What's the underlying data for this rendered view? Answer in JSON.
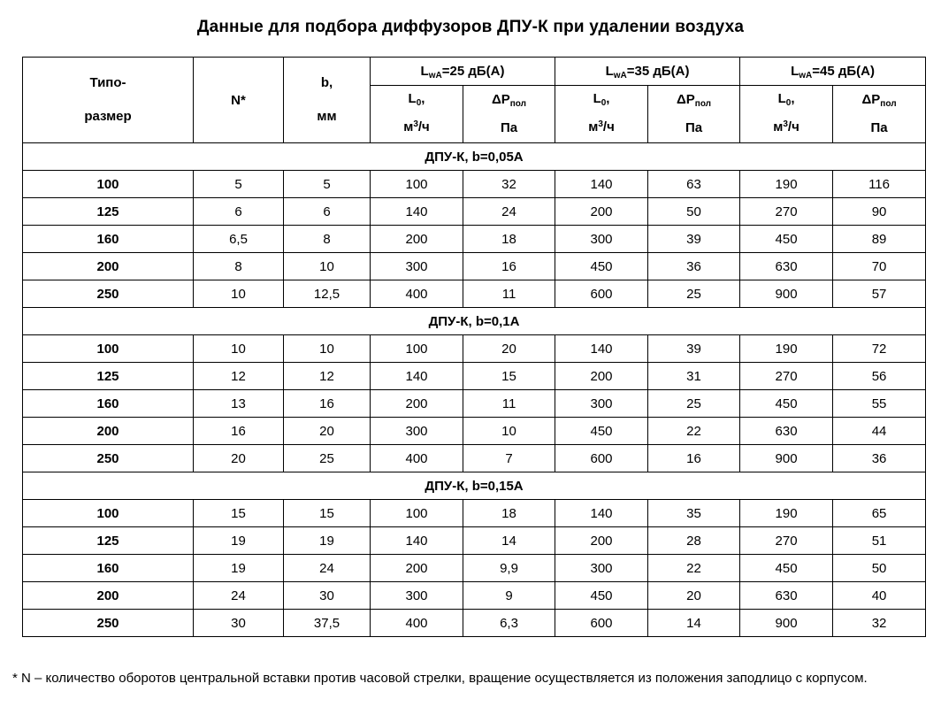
{
  "title": "Данные для подбора диффузоров ДПУ-К при удалении воздуха",
  "table": {
    "header": {
      "typo_line1": "Типо-",
      "typo_line2": "размер",
      "n_label": "N*",
      "b_line1": "b,",
      "b_line2": "мм",
      "groups": [
        {
          "main": "L",
          "sub": "wA",
          "rest": "=25 дБ(А)"
        },
        {
          "main": "L",
          "sub": "wA",
          "rest": "=35 дБ(А)"
        },
        {
          "main": "L",
          "sub": "wA",
          "rest": "=45 дБ(А)"
        }
      ],
      "flow": {
        "main": "L",
        "sub": "0",
        "rest": ",",
        "unit_main": "м",
        "unit_sup": "3",
        "unit_rest": "/ч"
      },
      "pressure": {
        "main": "ΔP",
        "sub": "пол",
        "unit": "Па"
      }
    },
    "sections": [
      {
        "label": "ДПУ-К, b=0,05А",
        "rows": [
          [
            "100",
            "5",
            "5",
            "100",
            "32",
            "140",
            "63",
            "190",
            "116"
          ],
          [
            "125",
            "6",
            "6",
            "140",
            "24",
            "200",
            "50",
            "270",
            "90"
          ],
          [
            "160",
            "6,5",
            "8",
            "200",
            "18",
            "300",
            "39",
            "450",
            "89"
          ],
          [
            "200",
            "8",
            "10",
            "300",
            "16",
            "450",
            "36",
            "630",
            "70"
          ],
          [
            "250",
            "10",
            "12,5",
            "400",
            "11",
            "600",
            "25",
            "900",
            "57"
          ]
        ]
      },
      {
        "label": "ДПУ-К, b=0,1А",
        "rows": [
          [
            "100",
            "10",
            "10",
            "100",
            "20",
            "140",
            "39",
            "190",
            "72"
          ],
          [
            "125",
            "12",
            "12",
            "140",
            "15",
            "200",
            "31",
            "270",
            "56"
          ],
          [
            "160",
            "13",
            "16",
            "200",
            "11",
            "300",
            "25",
            "450",
            "55"
          ],
          [
            "200",
            "16",
            "20",
            "300",
            "10",
            "450",
            "22",
            "630",
            "44"
          ],
          [
            "250",
            "20",
            "25",
            "400",
            "7",
            "600",
            "16",
            "900",
            "36"
          ]
        ]
      },
      {
        "label": "ДПУ-К, b=0,15А",
        "rows": [
          [
            "100",
            "15",
            "15",
            "100",
            "18",
            "140",
            "35",
            "190",
            "65"
          ],
          [
            "125",
            "19",
            "19",
            "140",
            "14",
            "200",
            "28",
            "270",
            "51"
          ],
          [
            "160",
            "19",
            "24",
            "200",
            "9,9",
            "300",
            "22",
            "450",
            "50"
          ],
          [
            "200",
            "24",
            "30",
            "300",
            "9",
            "450",
            "20",
            "630",
            "40"
          ],
          [
            "250",
            "30",
            "37,5",
            "400",
            "6,3",
            "600",
            "14",
            "900",
            "32"
          ]
        ]
      }
    ]
  },
  "footnote": "* N – количество оборотов центральной вставки против часовой стрелки, вращение осуществляется из положения заподлицо с корпусом."
}
